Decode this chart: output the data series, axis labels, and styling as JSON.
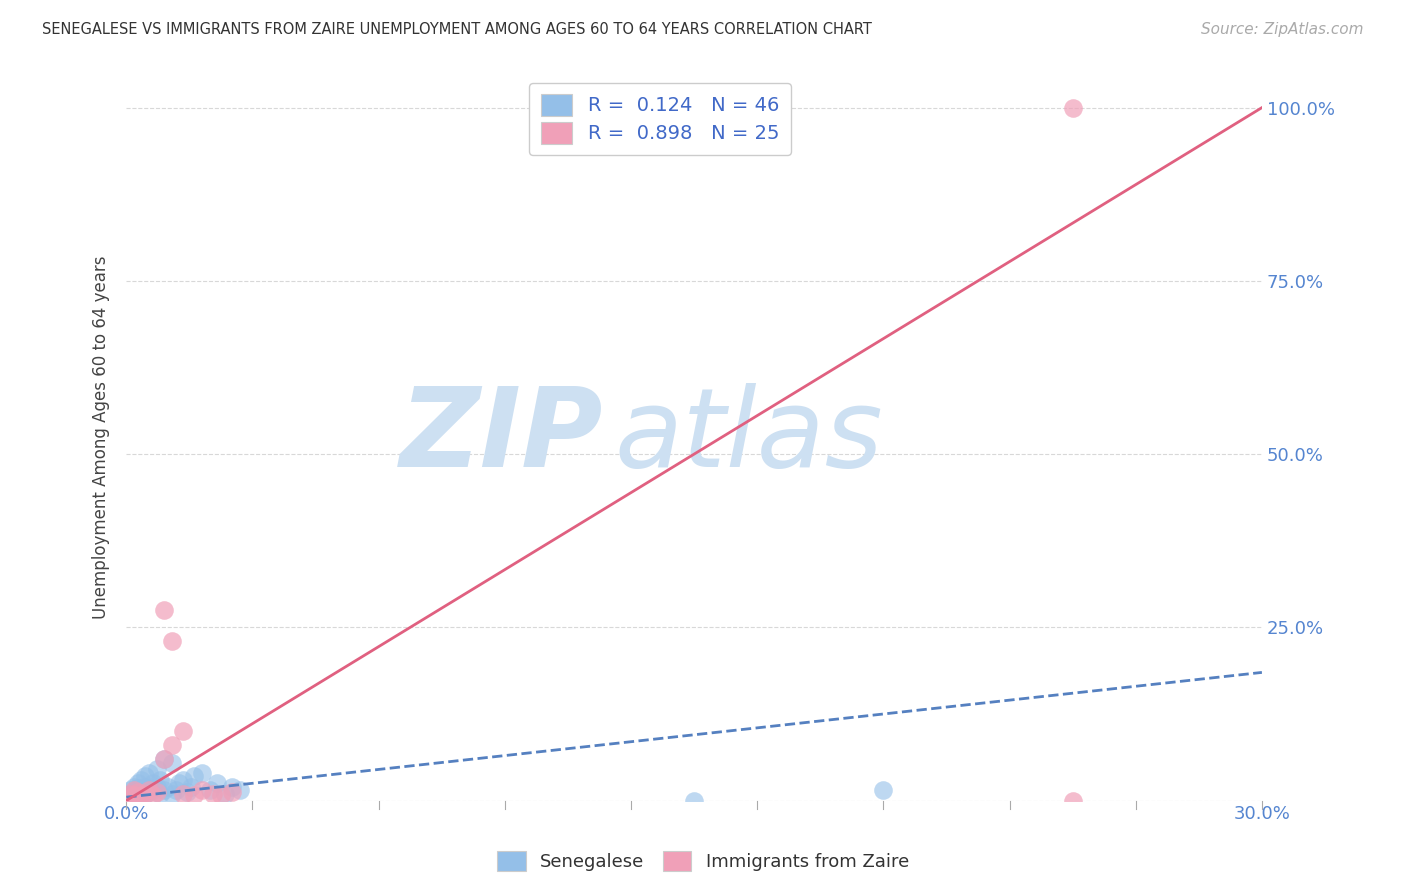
{
  "title": "SENEGALESE VS IMMIGRANTS FROM ZAIRE UNEMPLOYMENT AMONG AGES 60 TO 64 YEARS CORRELATION CHART",
  "source": "Source: ZipAtlas.com",
  "ylabel": "Unemployment Among Ages 60 to 64 years",
  "senegalese_color": "#94bfe8",
  "zaire_color": "#f0a0b8",
  "senegalese_line_color": "#5580c0",
  "zaire_line_color": "#e06080",
  "watermark_zip": "ZIP",
  "watermark_atlas": "atlas",
  "watermark_color": "#cde0f2",
  "background_color": "#ffffff",
  "grid_color": "#d8d8d8",
  "senegalese_scatter_x": [
    0.0,
    0.001,
    0.001,
    0.001,
    0.001,
    0.002,
    0.002,
    0.002,
    0.002,
    0.003,
    0.003,
    0.003,
    0.003,
    0.004,
    0.004,
    0.004,
    0.005,
    0.005,
    0.005,
    0.006,
    0.006,
    0.007,
    0.007,
    0.008,
    0.008,
    0.009,
    0.009,
    0.01,
    0.01,
    0.011,
    0.012,
    0.012,
    0.013,
    0.014,
    0.015,
    0.016,
    0.017,
    0.018,
    0.02,
    0.022,
    0.024,
    0.026,
    0.028,
    0.03,
    0.15,
    0.2
  ],
  "senegalese_scatter_y": [
    0.0,
    0.01,
    0.005,
    0.015,
    0.008,
    0.012,
    0.02,
    0.008,
    0.003,
    0.018,
    0.01,
    0.025,
    0.005,
    0.015,
    0.03,
    0.008,
    0.02,
    0.01,
    0.035,
    0.012,
    0.04,
    0.015,
    0.025,
    0.02,
    0.045,
    0.01,
    0.03,
    0.015,
    0.06,
    0.02,
    0.01,
    0.055,
    0.015,
    0.025,
    0.03,
    0.012,
    0.02,
    0.035,
    0.04,
    0.015,
    0.025,
    0.01,
    0.02,
    0.015,
    0.0,
    0.015
  ],
  "zaire_scatter_x": [
    0.0,
    0.001,
    0.001,
    0.002,
    0.002,
    0.003,
    0.003,
    0.004,
    0.005,
    0.006,
    0.007,
    0.008,
    0.01,
    0.012,
    0.015,
    0.018,
    0.02,
    0.023,
    0.025,
    0.028,
    0.01,
    0.012,
    0.015,
    0.25,
    0.25
  ],
  "zaire_scatter_y": [
    0.0,
    0.01,
    0.005,
    0.008,
    0.015,
    0.005,
    0.012,
    0.008,
    0.01,
    0.015,
    0.008,
    0.012,
    0.275,
    0.23,
    0.01,
    0.008,
    0.015,
    0.01,
    0.008,
    0.012,
    0.06,
    0.08,
    0.1,
    0.0,
    1.0
  ],
  "senegalese_line_x0": 0.0,
  "senegalese_line_y0": 0.005,
  "senegalese_line_x1": 0.3,
  "senegalese_line_y1": 0.185,
  "zaire_line_x0": 0.0,
  "zaire_line_y0": 0.0,
  "zaire_line_x1": 0.3,
  "zaire_line_y1": 1.0,
  "xlim": [
    0.0,
    0.3
  ],
  "ylim": [
    0.0,
    1.05
  ],
  "x_ticks": [
    0.0,
    0.033333,
    0.066667,
    0.1,
    0.133333,
    0.166667,
    0.2,
    0.233333,
    0.266667,
    0.3
  ],
  "y_ticks": [
    0.0,
    0.25,
    0.5,
    0.75,
    1.0
  ],
  "x_tick_labels": [
    "0.0%",
    "",
    "",
    "",
    "",
    "",
    "",
    "",
    "",
    "30.0%"
  ],
  "y_tick_labels": [
    "",
    "25.0%",
    "50.0%",
    "75.0%",
    "100.0%"
  ]
}
